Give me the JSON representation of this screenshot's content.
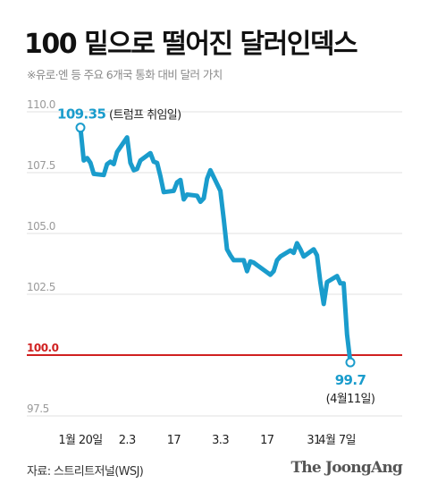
{
  "header": {
    "title": "100 밑으로 떨어진 달러인덱스",
    "subtitle": "※유로·엔 등 주요 6개국 통화 대비 달러 가치"
  },
  "footer": {
    "source": "자료: 스트리트저널(WSJ)",
    "brand": "The JoongAng"
  },
  "colors": {
    "line": "#1a9ccc",
    "reference": "#d02020",
    "grid": "#e2e2e2"
  },
  "chart_data": {
    "type": "line",
    "title": "100 밑으로 떨어진 달러인덱스",
    "ylim": [
      97.5,
      110.0
    ],
    "y_ticks": [
      "110.0",
      "107.5",
      "105.0",
      "102.5",
      "100.0",
      "97.5"
    ],
    "reference_line": {
      "value": 100.0,
      "label": "100.0"
    },
    "x_ticks": [
      {
        "label": "1월 20일",
        "date": "2025-01-20"
      },
      {
        "label": "2.3",
        "date": "2025-02-03"
      },
      {
        "label": "17",
        "date": "2025-02-17"
      },
      {
        "label": "3.3",
        "date": "2025-03-03"
      },
      {
        "label": "17",
        "date": "2025-03-17"
      },
      {
        "label": "31",
        "date": "2025-03-31"
      },
      {
        "label": "4월 7일",
        "date": "2025-04-07"
      }
    ],
    "x_range": [
      "2025-01-20",
      "2025-04-13"
    ],
    "series": [
      {
        "name": "",
        "points": [
          [
            "2025-01-20",
            109.35
          ],
          [
            "2025-01-21",
            108.0
          ],
          [
            "2025-01-22",
            108.1
          ],
          [
            "2025-01-23",
            107.9
          ],
          [
            "2025-01-24",
            107.45
          ],
          [
            "2025-01-27",
            107.4
          ],
          [
            "2025-01-28",
            107.85
          ],
          [
            "2025-01-29",
            107.95
          ],
          [
            "2025-01-30",
            107.85
          ],
          [
            "2025-01-31",
            108.35
          ],
          [
            "2025-02-03",
            108.95
          ],
          [
            "2025-02-04",
            107.9
          ],
          [
            "2025-02-05",
            107.6
          ],
          [
            "2025-02-06",
            107.65
          ],
          [
            "2025-02-07",
            108.0
          ],
          [
            "2025-02-10",
            108.3
          ],
          [
            "2025-02-11",
            107.95
          ],
          [
            "2025-02-12",
            107.9
          ],
          [
            "2025-02-13",
            107.35
          ],
          [
            "2025-02-14",
            106.7
          ],
          [
            "2025-02-17",
            106.75
          ],
          [
            "2025-02-18",
            107.1
          ],
          [
            "2025-02-19",
            107.2
          ],
          [
            "2025-02-20",
            106.4
          ],
          [
            "2025-02-21",
            106.6
          ],
          [
            "2025-02-24",
            106.55
          ],
          [
            "2025-02-25",
            106.3
          ],
          [
            "2025-02-26",
            106.45
          ],
          [
            "2025-02-27",
            107.25
          ],
          [
            "2025-02-28",
            107.6
          ],
          [
            "2025-03-03",
            106.75
          ],
          [
            "2025-03-04",
            105.6
          ],
          [
            "2025-03-05",
            104.35
          ],
          [
            "2025-03-06",
            104.1
          ],
          [
            "2025-03-07",
            103.9
          ],
          [
            "2025-03-10",
            103.9
          ],
          [
            "2025-03-11",
            103.45
          ],
          [
            "2025-03-12",
            103.85
          ],
          [
            "2025-03-13",
            103.8
          ],
          [
            "2025-03-14",
            103.7
          ],
          [
            "2025-03-17",
            103.4
          ],
          [
            "2025-03-18",
            103.3
          ],
          [
            "2025-03-19",
            103.45
          ],
          [
            "2025-03-20",
            103.9
          ],
          [
            "2025-03-21",
            104.05
          ],
          [
            "2025-03-24",
            104.3
          ],
          [
            "2025-03-25",
            104.2
          ],
          [
            "2025-03-26",
            104.6
          ],
          [
            "2025-03-27",
            104.35
          ],
          [
            "2025-03-28",
            104.05
          ],
          [
            "2025-03-31",
            104.35
          ],
          [
            "2025-04-01",
            104.1
          ],
          [
            "2025-04-02",
            103.0
          ],
          [
            "2025-04-03",
            102.1
          ],
          [
            "2025-04-04",
            103.0
          ],
          [
            "2025-04-07",
            103.25
          ],
          [
            "2025-04-08",
            102.95
          ],
          [
            "2025-04-09",
            102.95
          ],
          [
            "2025-04-10",
            100.85
          ],
          [
            "2025-04-11",
            99.7
          ]
        ]
      }
    ],
    "annotations": [
      {
        "date": "2025-01-20",
        "value": 109.35,
        "value_label": "109.35",
        "note": "(트럼프 취임일)"
      },
      {
        "date": "2025-04-11",
        "value": 99.7,
        "value_label": "99.7",
        "note": "(4월11일)"
      }
    ]
  }
}
